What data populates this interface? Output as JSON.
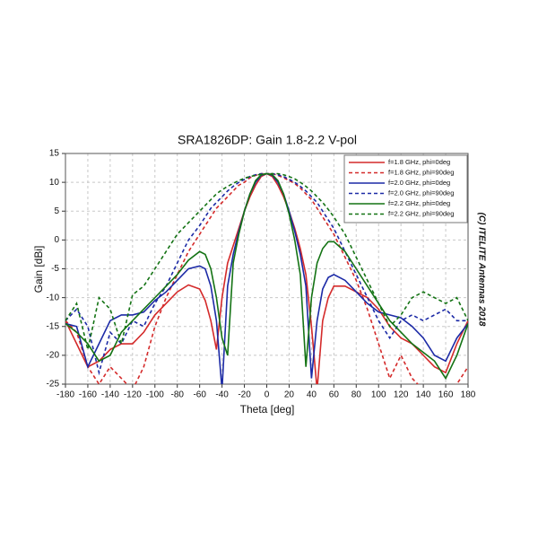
{
  "chart_data": {
    "type": "line",
    "title": "SRA1826DP: Gain 1.8-2.2 V-pol",
    "xlabel": "Theta [deg]",
    "ylabel": "Gain [dBi]",
    "annotation": "(C) ITELITE Antennas 2018",
    "xlim": [
      -180,
      180
    ],
    "ylim": [
      -25,
      15
    ],
    "xticks": [
      -180,
      -160,
      -140,
      -120,
      -100,
      -80,
      -60,
      -40,
      -20,
      0,
      20,
      40,
      60,
      80,
      100,
      120,
      140,
      160,
      180
    ],
    "yticks": [
      -25,
      -20,
      -15,
      -10,
      -5,
      0,
      5,
      10,
      15
    ],
    "grid": true,
    "legend": "upper right",
    "x": [
      -180,
      -170,
      -160,
      -150,
      -140,
      -130,
      -120,
      -110,
      -100,
      -90,
      -80,
      -70,
      -60,
      -55,
      -50,
      -45,
      -40,
      -35,
      -30,
      -25,
      -20,
      -15,
      -10,
      -5,
      0,
      5,
      10,
      15,
      20,
      25,
      30,
      35,
      40,
      45,
      50,
      55,
      60,
      70,
      80,
      90,
      100,
      110,
      120,
      130,
      140,
      150,
      160,
      170,
      180
    ],
    "series": [
      {
        "name": "f=1.8 GHz, phi=0deg",
        "color": "#d42a2a",
        "dashed": false,
        "values": [
          -14,
          -18,
          -22,
          -21,
          -19,
          -18,
          -18,
          -16,
          -13,
          -11,
          -9,
          -7.8,
          -8.5,
          -10.5,
          -14,
          -19,
          -10,
          -4,
          -1,
          2,
          5,
          7.5,
          9.5,
          11,
          11.5,
          11,
          9.5,
          7.5,
          5,
          2,
          -1.5,
          -6,
          -15,
          -26,
          -14,
          -10,
          -8,
          -8,
          -9,
          -10,
          -12,
          -15,
          -17,
          -18,
          -20,
          -22,
          -23,
          -18,
          -14
        ]
      },
      {
        "name": "f=1.8 GHz, phi=90deg",
        "color": "#d42a2a",
        "dashed": true,
        "values": [
          -14,
          -16,
          -22,
          -25,
          -22,
          -24,
          -26,
          -22,
          -15,
          -10,
          -6,
          -2,
          1,
          2.5,
          4,
          5.5,
          6.5,
          7.5,
          8.5,
          9.5,
          10,
          10.8,
          11.2,
          11.5,
          11.5,
          11.5,
          11.2,
          10.8,
          10.3,
          9.8,
          9,
          8,
          7,
          5.5,
          4,
          2.5,
          1,
          -3,
          -7,
          -12,
          -18,
          -24,
          -20,
          -24,
          -26,
          -28,
          -26,
          -25,
          -22
        ]
      },
      {
        "name": "f=2.0 GHz, phi=0deg",
        "color": "#1c2aa6",
        "dashed": false,
        "values": [
          -14.5,
          -15,
          -22,
          -18,
          -14,
          -13,
          -13,
          -12.5,
          -10.5,
          -9,
          -7,
          -5,
          -4.5,
          -5,
          -8,
          -14,
          -26,
          -8,
          -2.5,
          1.5,
          5,
          8,
          10,
          11.2,
          11.5,
          11.2,
          10,
          8,
          5,
          1.5,
          -2.5,
          -8,
          -24,
          -14,
          -8.5,
          -6.5,
          -6,
          -7,
          -9,
          -11,
          -12.5,
          -13,
          -13.5,
          -15,
          -17,
          -20,
          -21,
          -17,
          -14.5
        ]
      },
      {
        "name": "f=2.0 GHz, phi=90deg",
        "color": "#1c2aa6",
        "dashed": true,
        "values": [
          -14,
          -12,
          -15,
          -23,
          -16,
          -18,
          -14,
          -15,
          -11,
          -8,
          -4,
          0,
          2.5,
          4,
          5.5,
          6.5,
          7.5,
          8.5,
          9.3,
          10,
          10.5,
          11,
          11.3,
          11.5,
          11.5,
          11.5,
          11.3,
          11,
          10.5,
          10,
          9.3,
          8.5,
          7.5,
          6.5,
          5,
          3.5,
          2,
          -2,
          -6,
          -10,
          -14,
          -17,
          -14,
          -13,
          -14,
          -13,
          -12,
          -14,
          -14
        ]
      },
      {
        "name": "f=2.2 GHz, phi=0deg",
        "color": "#147314",
        "dashed": false,
        "values": [
          -14.5,
          -16,
          -18,
          -21,
          -20,
          -16,
          -14,
          -12,
          -10,
          -8,
          -6,
          -3.5,
          -2,
          -2.5,
          -5,
          -10,
          -17,
          -20,
          -4,
          1,
          5,
          8,
          10.3,
          11.3,
          11.5,
          11.3,
          10.3,
          8,
          4.5,
          0,
          -6,
          -22,
          -10,
          -4,
          -1.5,
          -0.3,
          -0.3,
          -2,
          -5,
          -8,
          -11,
          -14,
          -16,
          -18,
          -19.5,
          -21,
          -24,
          -20,
          -14.5
        ]
      },
      {
        "name": "f=2.2 GHz, phi=90deg",
        "color": "#147314",
        "dashed": true,
        "values": [
          -14,
          -11,
          -19,
          -10,
          -12,
          -18,
          -9.5,
          -8,
          -5,
          -2,
          1,
          3,
          5,
          6,
          7,
          8,
          8.7,
          9.3,
          9.8,
          10.3,
          10.7,
          11,
          11.2,
          11.4,
          11.5,
          11.5,
          11.5,
          11.3,
          11,
          10.6,
          10,
          9.3,
          8.5,
          7.5,
          6.5,
          5.3,
          4,
          1,
          -3,
          -7,
          -11,
          -15,
          -13,
          -10,
          -9,
          -10,
          -11,
          -10,
          -14
        ]
      }
    ]
  }
}
